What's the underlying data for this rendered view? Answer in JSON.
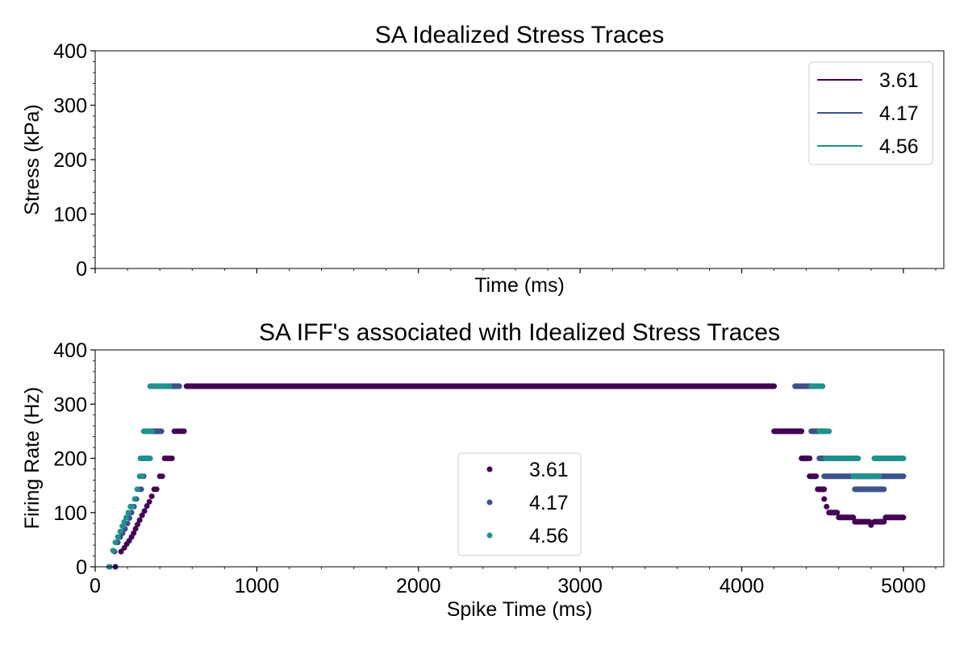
{
  "chart_data": [
    {
      "type": "line",
      "title": "SA Idealized Stress Traces",
      "xlabel": "Time (ms)",
      "ylabel": "Stress (kPa)",
      "xlim": [
        0,
        5250
      ],
      "ylim": [
        0,
        400
      ],
      "yticks": [
        "0",
        "100",
        "200",
        "300",
        "400"
      ],
      "xticks": [],
      "legend_position": "top-right",
      "series": [
        {
          "name": "3.61",
          "color": "#440154",
          "x": [],
          "y": []
        },
        {
          "name": "4.17",
          "color": "#3b528b",
          "x": [],
          "y": []
        },
        {
          "name": "4.56",
          "color": "#21918c",
          "x": [],
          "y": []
        }
      ]
    },
    {
      "type": "scatter",
      "title": "SA IFF's associated with Idealized Stress Traces",
      "xlabel": "Spike Time (ms)",
      "ylabel": "Firing Rate (Hz)",
      "xlim": [
        0,
        5250
      ],
      "ylim": [
        0,
        400
      ],
      "xticks": [
        "0",
        "1000",
        "2000",
        "3000",
        "4000",
        "5000"
      ],
      "yticks": [
        "0",
        "100",
        "200",
        "300",
        "400"
      ],
      "legend_position": "lower-center",
      "series": [
        {
          "name": "3.61",
          "color": "#440154",
          "x": [
            125,
            160,
            180,
            195,
            210,
            225,
            238,
            250,
            262,
            275,
            290,
            305,
            320,
            335,
            350,
            365,
            380,
            400,
            415,
            430,
            445,
            460,
            475,
            490,
            505,
            520,
            535,
            550,
            565
          ],
          "y": [
            0,
            28,
            35,
            42,
            48,
            55,
            62,
            70,
            78,
            86,
            95,
            103,
            112,
            120,
            130,
            143,
            143,
            167,
            167,
            200,
            200,
            200,
            200,
            250,
            250,
            250,
            250,
            250,
            333
          ],
          "segments": [
            {
              "x0": 570,
              "x1": 4200,
              "y": 333
            },
            {
              "x0": 4200,
              "x1": 4370,
              "y": 250
            },
            {
              "x0": 4370,
              "x1": 4420,
              "y": 200
            },
            {
              "x0": 4420,
              "x1": 4460,
              "y": 167
            },
            {
              "x0": 4470,
              "x1": 4510,
              "y": 143
            },
            {
              "x0": 4540,
              "x1": 4590,
              "y": 100
            },
            {
              "x0": 4600,
              "x1": 4690,
              "y": 91
            },
            {
              "x0": 4700,
              "x1": 4790,
              "y": 83
            },
            {
              "x0": 4820,
              "x1": 4880,
              "y": 83
            },
            {
              "x0": 4890,
              "x1": 5000,
              "y": 91
            }
          ],
          "extra_points": [
            [
              4510,
              125
            ],
            [
              4525,
              111
            ],
            [
              4800,
              77
            ]
          ]
        },
        {
          "name": "4.17",
          "color": "#3b528b",
          "x": [
            90,
            120,
            140,
            155,
            170,
            185,
            200,
            212,
            225,
            240,
            255,
            270,
            285,
            300,
            315,
            330,
            345
          ],
          "y": [
            0,
            28,
            45,
            55,
            62,
            70,
            80,
            90,
            100,
            111,
            125,
            143,
            143,
            167,
            200,
            200,
            250
          ],
          "segments": [
            {
              "x0": 350,
              "x1": 410,
              "y": 250
            },
            {
              "x0": 360,
              "x1": 520,
              "y": 333
            },
            {
              "x0": 4330,
              "x1": 4480,
              "y": 333
            },
            {
              "x0": 4430,
              "x1": 4500,
              "y": 250
            },
            {
              "x0": 4480,
              "x1": 4530,
              "y": 200
            },
            {
              "x0": 4510,
              "x1": 5000,
              "y": 167
            },
            {
              "x0": 4700,
              "x1": 4880,
              "y": 143
            }
          ],
          "extra_points": []
        },
        {
          "name": "4.56",
          "color": "#21918c",
          "x": [
            85,
            110,
            125,
            140,
            155,
            168,
            180,
            192,
            205,
            218,
            230,
            245,
            260,
            275,
            290,
            305,
            320
          ],
          "y": [
            0,
            30,
            45,
            55,
            65,
            75,
            83,
            91,
            100,
            111,
            111,
            125,
            143,
            167,
            167,
            200,
            250
          ],
          "segments": [
            {
              "x0": 280,
              "x1": 340,
              "y": 200
            },
            {
              "x0": 300,
              "x1": 350,
              "y": 250
            },
            {
              "x0": 340,
              "x1": 460,
              "y": 333
            },
            {
              "x0": 4430,
              "x1": 4500,
              "y": 333
            },
            {
              "x0": 4480,
              "x1": 4540,
              "y": 250
            },
            {
              "x0": 4520,
              "x1": 4720,
              "y": 200
            },
            {
              "x0": 4690,
              "x1": 4850,
              "y": 167
            },
            {
              "x0": 4820,
              "x1": 5000,
              "y": 200
            }
          ],
          "extra_points": []
        }
      ]
    }
  ]
}
